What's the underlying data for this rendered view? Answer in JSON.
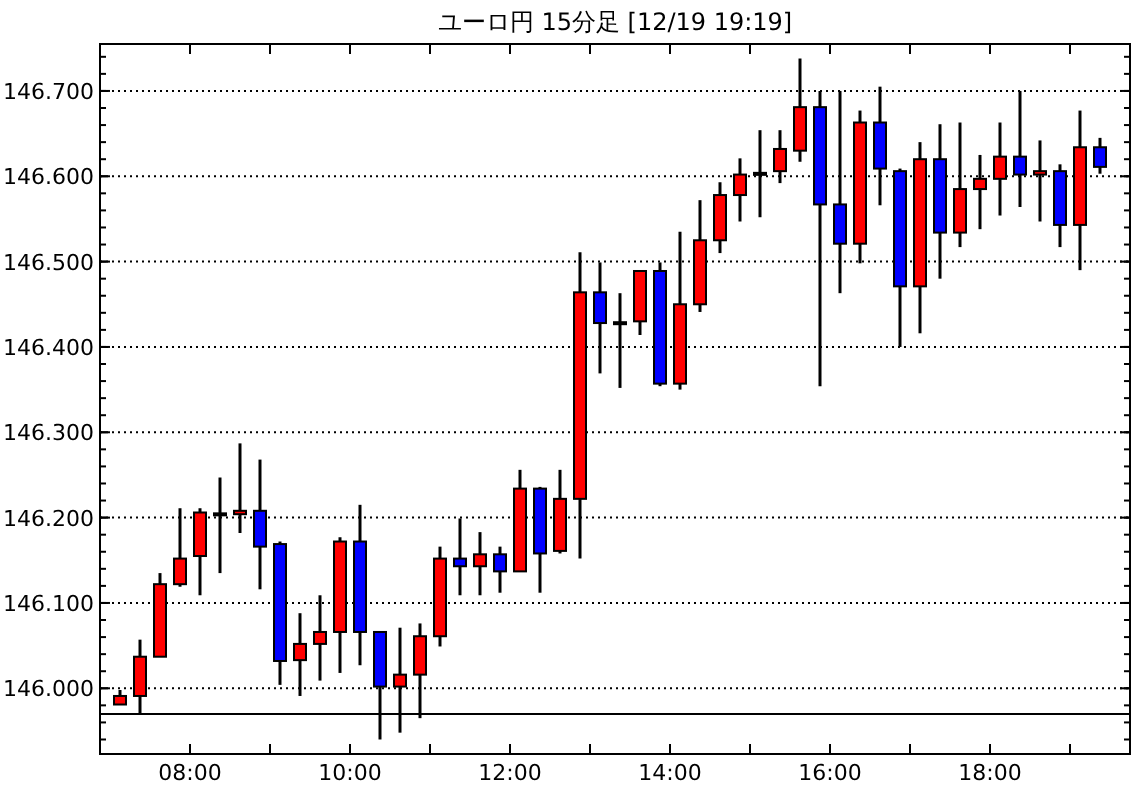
{
  "chart_data": {
    "type": "candlestick",
    "title": "ユーロ円 15分足 [12/19 19:19]",
    "x": [
      7.125,
      7.375,
      7.625,
      7.875,
      8.125,
      8.375,
      8.625,
      8.875,
      9.125,
      9.375,
      9.625,
      9.875,
      10.125,
      10.375,
      10.625,
      10.875,
      11.125,
      11.375,
      11.625,
      11.875,
      12.125,
      12.375,
      12.625,
      12.875,
      13.125,
      13.375,
      13.625,
      13.875,
      14.125,
      14.375,
      14.625,
      14.875,
      15.125,
      15.375,
      15.625,
      15.875,
      16.125,
      16.375,
      16.625,
      16.875,
      17.125,
      17.375,
      17.625,
      17.875,
      18.125,
      18.375,
      18.625,
      18.875,
      19.125,
      19.375
    ],
    "ohlc": [
      [
        145.981,
        145.998,
        145.981,
        145.991
      ],
      [
        145.991,
        146.057,
        145.971,
        146.037
      ],
      [
        146.037,
        146.135,
        146.037,
        146.122
      ],
      [
        146.122,
        146.211,
        146.119,
        146.152
      ],
      [
        146.155,
        146.211,
        146.109,
        146.206
      ],
      [
        146.205,
        146.247,
        146.135,
        146.205
      ],
      [
        146.204,
        146.287,
        146.182,
        146.208
      ],
      [
        146.208,
        146.268,
        146.116,
        146.166
      ],
      [
        146.169,
        146.172,
        146.004,
        146.032
      ],
      [
        146.033,
        146.088,
        145.991,
        146.052
      ],
      [
        146.052,
        146.109,
        146.009,
        146.066
      ],
      [
        146.066,
        146.177,
        146.018,
        146.172
      ],
      [
        146.172,
        146.215,
        146.027,
        146.066
      ],
      [
        146.066,
        146.066,
        145.94,
        146.002
      ],
      [
        146.002,
        146.071,
        145.948,
        146.016
      ],
      [
        146.016,
        146.076,
        145.965,
        146.061
      ],
      [
        146.061,
        146.166,
        146.049,
        146.152
      ],
      [
        146.152,
        146.199,
        146.109,
        146.143
      ],
      [
        146.143,
        146.183,
        146.109,
        146.157
      ],
      [
        146.157,
        146.166,
        146.112,
        146.137
      ],
      [
        146.137,
        146.256,
        146.137,
        146.234
      ],
      [
        146.234,
        146.236,
        146.112,
        146.158
      ],
      [
        146.161,
        146.256,
        146.158,
        146.222
      ],
      [
        146.222,
        146.511,
        146.152,
        146.464
      ],
      [
        146.464,
        146.499,
        146.369,
        146.428
      ],
      [
        146.429,
        146.463,
        146.352,
        146.429
      ],
      [
        146.43,
        146.489,
        146.414,
        146.489
      ],
      [
        146.489,
        146.499,
        146.354,
        146.357
      ],
      [
        146.357,
        146.535,
        146.35,
        146.45
      ],
      [
        146.45,
        146.572,
        146.441,
        146.525
      ],
      [
        146.525,
        146.593,
        146.51,
        146.578
      ],
      [
        146.578,
        146.621,
        146.547,
        146.602
      ],
      [
        146.604,
        146.654,
        146.552,
        146.604
      ],
      [
        146.606,
        146.654,
        146.592,
        146.632
      ],
      [
        146.63,
        146.738,
        146.617,
        146.681
      ],
      [
        146.681,
        146.7,
        146.354,
        146.567
      ],
      [
        146.567,
        146.7,
        146.463,
        146.521
      ],
      [
        146.521,
        146.677,
        146.498,
        146.663
      ],
      [
        146.663,
        146.705,
        146.566,
        146.609
      ],
      [
        146.606,
        146.609,
        146.4,
        146.471
      ],
      [
        146.471,
        146.64,
        146.416,
        146.62
      ],
      [
        146.62,
        146.661,
        146.48,
        146.534
      ],
      [
        146.534,
        146.663,
        146.517,
        146.585
      ],
      [
        146.585,
        146.625,
        146.538,
        146.597
      ],
      [
        146.597,
        146.663,
        146.554,
        146.623
      ],
      [
        146.623,
        146.7,
        146.564,
        146.602
      ],
      [
        146.602,
        146.642,
        146.547,
        146.606
      ],
      [
        146.606,
        146.614,
        146.517,
        146.543
      ],
      [
        146.543,
        146.677,
        146.49,
        146.634
      ],
      [
        146.634,
        146.645,
        146.603,
        146.611
      ]
    ],
    "colors": [
      "#ff0000",
      "#ff0000",
      "#ff0000",
      "#ff0000",
      "#ff0000",
      "#000000",
      "#ff0000",
      "#0000ff",
      "#0000ff",
      "#ff0000",
      "#ff0000",
      "#ff0000",
      "#0000ff",
      "#0000ff",
      "#ff0000",
      "#ff0000",
      "#ff0000",
      "#0000ff",
      "#ff0000",
      "#0000ff",
      "#ff0000",
      "#0000ff",
      "#ff0000",
      "#ff0000",
      "#0000ff",
      "#000000",
      "#ff0000",
      "#0000ff",
      "#ff0000",
      "#ff0000",
      "#ff0000",
      "#ff0000",
      "#000000",
      "#ff0000",
      "#ff0000",
      "#0000ff",
      "#0000ff",
      "#ff0000",
      "#0000ff",
      "#0000ff",
      "#ff0000",
      "#0000ff",
      "#ff0000",
      "#ff0000",
      "#ff0000",
      "#0000ff",
      "#ff0000",
      "#0000ff",
      "#ff0000",
      "#0000ff"
    ],
    "xlim": [
      6.875,
      19.75
    ],
    "ylim": [
      145.923,
      146.755
    ],
    "xticks": [
      {
        "value": 8,
        "label": "08:00"
      },
      {
        "value": 9,
        "label": null
      },
      {
        "value": 10,
        "label": "10:00"
      },
      {
        "value": 11,
        "label": null
      },
      {
        "value": 12,
        "label": "12:00"
      },
      {
        "value": 13,
        "label": null
      },
      {
        "value": 14,
        "label": "14:00"
      },
      {
        "value": 15,
        "label": null
      },
      {
        "value": 16,
        "label": "16:00"
      },
      {
        "value": 17,
        "label": null
      },
      {
        "value": 18,
        "label": "18:00"
      },
      {
        "value": 19,
        "label": null
      }
    ],
    "yticks": [
      {
        "value": 146.0,
        "label": "146.000"
      },
      {
        "value": 146.1,
        "label": "146.100"
      },
      {
        "value": 146.2,
        "label": "146.200"
      },
      {
        "value": 146.3,
        "label": "146.300"
      },
      {
        "value": 146.4,
        "label": "146.400"
      },
      {
        "value": 146.5,
        "label": "146.500"
      },
      {
        "value": 146.6,
        "label": "146.600"
      },
      {
        "value": 146.7,
        "label": "146.700"
      }
    ],
    "grid": "y",
    "ref_lines": [
      {
        "axis": "y",
        "value": 145.97,
        "label": null,
        "color": "#000000"
      }
    ]
  }
}
